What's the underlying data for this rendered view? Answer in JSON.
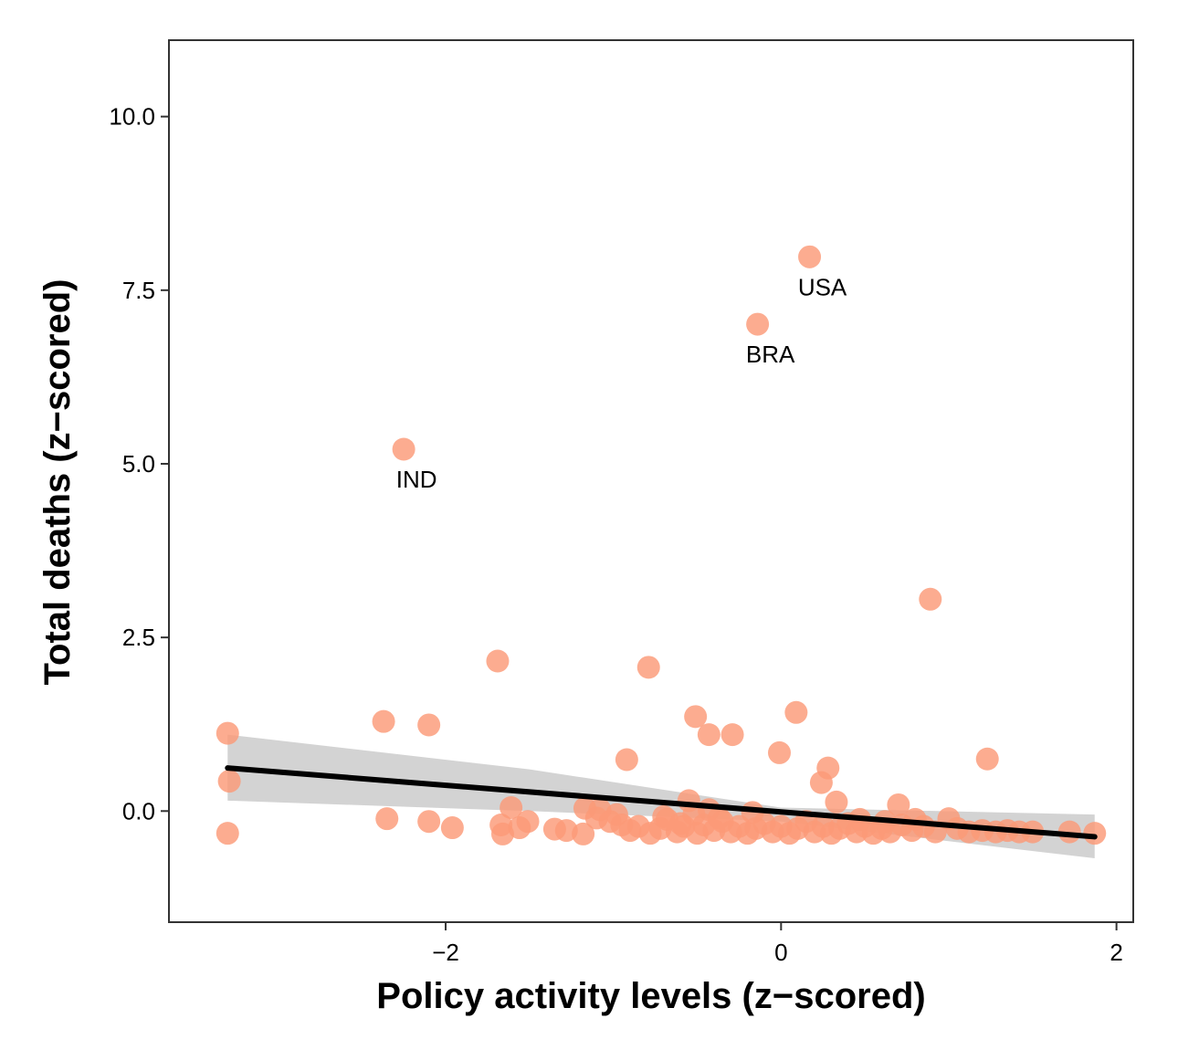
{
  "chart_data": {
    "type": "scatter",
    "title": "",
    "xlabel": "Policy activity levels (z−scored)",
    "ylabel": "Total deaths (z−scored)",
    "xlim": [
      -3.65,
      2.1
    ],
    "ylim": [
      -1.6,
      11.1
    ],
    "xticks": [
      -2,
      0,
      2
    ],
    "xtick_labels": [
      "−2",
      "0",
      "2"
    ],
    "yticks": [
      0,
      2.5,
      5,
      7.5,
      10
    ],
    "ytick_labels": [
      "0.0",
      "2.5",
      "5.0",
      "7.5",
      "10.0"
    ],
    "grid": false,
    "legend": "none",
    "colors": {
      "points": "#fb9a78",
      "line": "#000000",
      "ribbon": "#c8c8c8",
      "frame": "#333333"
    },
    "points": [
      {
        "x": 0.17,
        "y": 7.98
      },
      {
        "x": -0.14,
        "y": 7.01
      },
      {
        "x": -2.25,
        "y": 5.21
      },
      {
        "x": 0.89,
        "y": 3.05
      },
      {
        "x": -1.69,
        "y": 2.16
      },
      {
        "x": -0.79,
        "y": 2.07
      },
      {
        "x": 0.09,
        "y": 1.42
      },
      {
        "x": -0.51,
        "y": 1.36
      },
      {
        "x": -2.37,
        "y": 1.29
      },
      {
        "x": -2.1,
        "y": 1.24
      },
      {
        "x": -3.3,
        "y": 1.12
      },
      {
        "x": -0.43,
        "y": 1.1
      },
      {
        "x": -0.29,
        "y": 1.1
      },
      {
        "x": -0.01,
        "y": 0.84
      },
      {
        "x": 1.23,
        "y": 0.75
      },
      {
        "x": -0.92,
        "y": 0.74
      },
      {
        "x": 0.28,
        "y": 0.62
      },
      {
        "x": -3.29,
        "y": 0.43
      },
      {
        "x": 0.24,
        "y": 0.41
      },
      {
        "x": 0.33,
        "y": 0.13
      },
      {
        "x": -0.55,
        "y": 0.15
      },
      {
        "x": 0.7,
        "y": 0.09
      },
      {
        "x": -1.61,
        "y": 0.05
      },
      {
        "x": -1.17,
        "y": 0.04
      },
      {
        "x": -0.43,
        "y": 0.02
      },
      {
        "x": -0.17,
        "y": -0.02
      },
      {
        "x": 1.0,
        "y": -0.11
      },
      {
        "x": -2.35,
        "y": -0.11
      },
      {
        "x": -2.1,
        "y": -0.15
      },
      {
        "x": -1.51,
        "y": -0.15
      },
      {
        "x": -1.67,
        "y": -0.2
      },
      {
        "x": -1.96,
        "y": -0.24
      },
      {
        "x": -1.56,
        "y": -0.24
      },
      {
        "x": -1.35,
        "y": -0.26
      },
      {
        "x": -1.28,
        "y": -0.28
      },
      {
        "x": -3.3,
        "y": -0.32
      },
      {
        "x": -1.66,
        "y": -0.33
      },
      {
        "x": -1.18,
        "y": -0.33
      },
      {
        "x": -1.1,
        "y": -0.1
      },
      {
        "x": -1.02,
        "y": -0.15
      },
      {
        "x": -0.95,
        "y": -0.2
      },
      {
        "x": -0.9,
        "y": -0.28
      },
      {
        "x": -0.85,
        "y": -0.22
      },
      {
        "x": -0.78,
        "y": -0.32
      },
      {
        "x": -0.72,
        "y": -0.25
      },
      {
        "x": -0.68,
        "y": -0.12
      },
      {
        "x": -0.62,
        "y": -0.3
      },
      {
        "x": -0.58,
        "y": -0.22
      },
      {
        "x": -0.5,
        "y": -0.32
      },
      {
        "x": -0.46,
        "y": -0.2
      },
      {
        "x": -0.4,
        "y": -0.28
      },
      {
        "x": -0.35,
        "y": -0.15
      },
      {
        "x": -0.3,
        "y": -0.3
      },
      {
        "x": -0.25,
        "y": -0.22
      },
      {
        "x": -0.2,
        "y": -0.32
      },
      {
        "x": -0.15,
        "y": -0.25
      },
      {
        "x": -0.1,
        "y": -0.18
      },
      {
        "x": -0.05,
        "y": -0.3
      },
      {
        "x": 0.0,
        "y": -0.22
      },
      {
        "x": 0.05,
        "y": -0.32
      },
      {
        "x": 0.1,
        "y": -0.25
      },
      {
        "x": 0.15,
        "y": -0.15
      },
      {
        "x": 0.2,
        "y": -0.3
      },
      {
        "x": 0.25,
        "y": -0.22
      },
      {
        "x": 0.3,
        "y": -0.32
      },
      {
        "x": 0.35,
        "y": -0.25
      },
      {
        "x": 0.4,
        "y": -0.18
      },
      {
        "x": 0.45,
        "y": -0.3
      },
      {
        "x": 0.5,
        "y": -0.22
      },
      {
        "x": 0.55,
        "y": -0.32
      },
      {
        "x": 0.6,
        "y": -0.25
      },
      {
        "x": 0.65,
        "y": -0.3
      },
      {
        "x": 0.72,
        "y": -0.2
      },
      {
        "x": 0.78,
        "y": -0.28
      },
      {
        "x": 0.85,
        "y": -0.22
      },
      {
        "x": 0.92,
        "y": -0.3
      },
      {
        "x": 1.05,
        "y": -0.25
      },
      {
        "x": 1.12,
        "y": -0.3
      },
      {
        "x": 1.2,
        "y": -0.28
      },
      {
        "x": 1.28,
        "y": -0.3
      },
      {
        "x": 1.35,
        "y": -0.28
      },
      {
        "x": 1.42,
        "y": -0.3
      },
      {
        "x": 1.5,
        "y": -0.3
      },
      {
        "x": 1.72,
        "y": -0.3
      },
      {
        "x": 1.87,
        "y": -0.32
      },
      {
        "x": -1.08,
        "y": 0.02
      },
      {
        "x": -0.98,
        "y": -0.05
      },
      {
        "x": -0.7,
        "y": -0.08
      },
      {
        "x": -0.6,
        "y": -0.18
      },
      {
        "x": -0.52,
        "y": -0.05
      },
      {
        "x": -0.37,
        "y": -0.1
      },
      {
        "x": 0.47,
        "y": -0.12
      },
      {
        "x": 0.62,
        "y": -0.15
      },
      {
        "x": 0.8,
        "y": -0.12
      }
    ],
    "labels": [
      {
        "text": "USA",
        "x": 0.17,
        "y": 7.98
      },
      {
        "text": "BRA",
        "x": -0.14,
        "y": 7.01
      },
      {
        "text": "IND",
        "x": -2.25,
        "y": 5.21
      }
    ],
    "fit": {
      "line": [
        {
          "x": -3.3,
          "y": 0.62
        },
        {
          "x": 1.87,
          "y": -0.37
        }
      ],
      "ribbon_upper": [
        {
          "x": -3.3,
          "y": 1.1
        },
        {
          "x": -1.5,
          "y": 0.6
        },
        {
          "x": 0.0,
          "y": 0.05
        },
        {
          "x": 1.87,
          "y": -0.05
        }
      ],
      "ribbon_lower": [
        {
          "x": -3.3,
          "y": 0.15
        },
        {
          "x": -1.5,
          "y": 0.0
        },
        {
          "x": 0.0,
          "y": -0.15
        },
        {
          "x": 1.87,
          "y": -0.68
        }
      ]
    }
  }
}
